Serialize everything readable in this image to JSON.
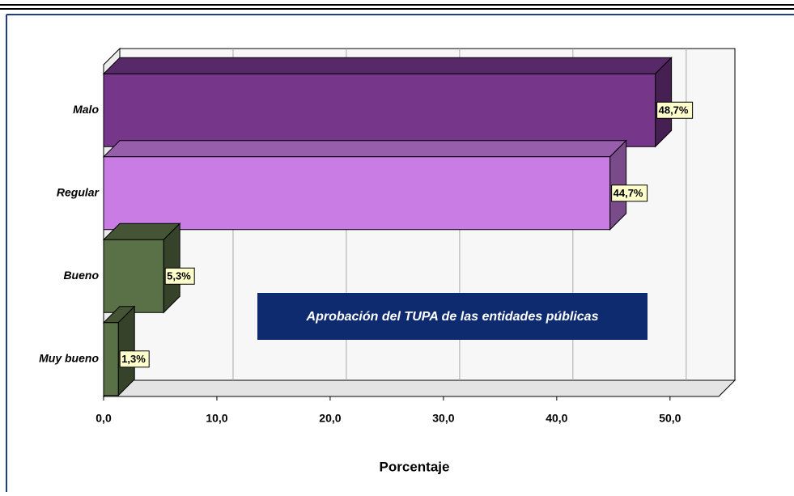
{
  "chart_data": {
    "type": "bar3d_horizontal",
    "categories": [
      "Malo",
      "Regular",
      "Bueno",
      "Muy bueno"
    ],
    "values": [
      48.7,
      44.7,
      5.3,
      1.3
    ],
    "value_labels": [
      "48,7%",
      "44,7%",
      "5,3%",
      "1,3%"
    ],
    "colors": [
      "#76368a",
      "#c97de4",
      "#5a7046",
      "#5a7046"
    ],
    "xlabel": "Porcentaje",
    "xlim": [
      0,
      54.3
    ],
    "xticks": [
      {
        "value": 0,
        "label": "0,0"
      },
      {
        "value": 10,
        "label": "10,0"
      },
      {
        "value": 20,
        "label": "20,0"
      },
      {
        "value": 30,
        "label": "30,0"
      },
      {
        "value": 40,
        "label": "40,0"
      },
      {
        "value": 50,
        "label": "50,0"
      }
    ],
    "annotation": "Aprobación del TUPA de las entidades públicas",
    "grid": true
  }
}
